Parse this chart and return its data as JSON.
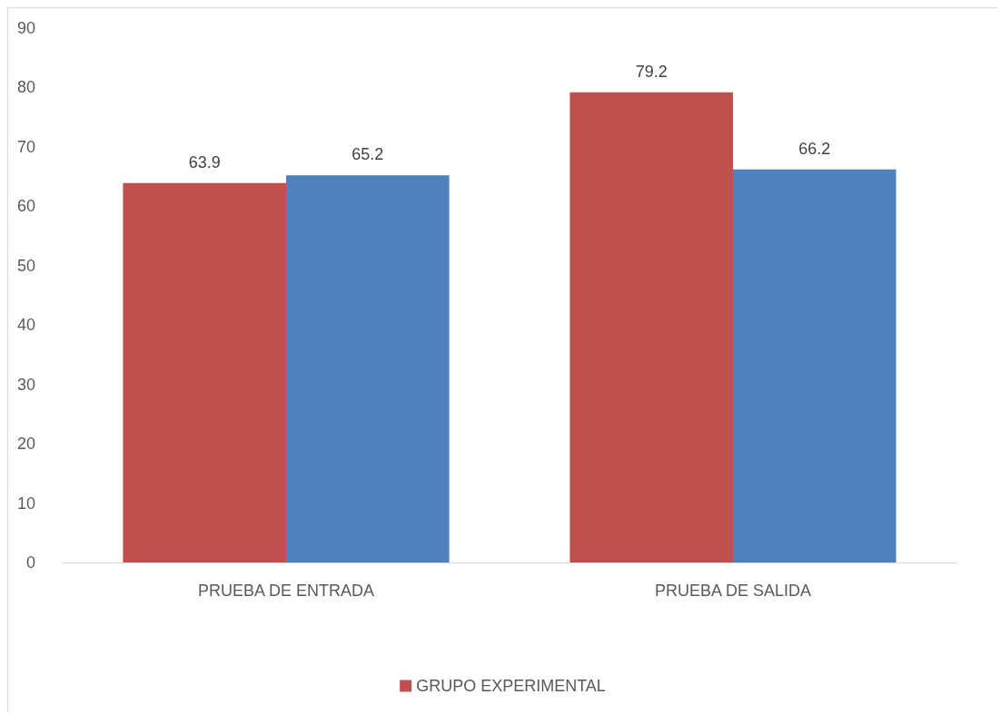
{
  "chart_data": {
    "type": "bar",
    "categories": [
      "PRUEBA DE ENTRADA",
      "PRUEBA DE SALIDA"
    ],
    "series": [
      {
        "name": "GRUPO EXPERIMENTAL",
        "color": "#c0504d",
        "values": [
          63.9,
          79.2
        ]
      },
      {
        "color": "#4f81bd",
        "values": [
          65.2,
          66.2
        ]
      }
    ],
    "ylim": [
      0,
      90
    ],
    "yticks": [
      0,
      10,
      20,
      30,
      40,
      50,
      60,
      70,
      80,
      90
    ],
    "grid": false,
    "legend": "bottom",
    "data_labels": true
  }
}
